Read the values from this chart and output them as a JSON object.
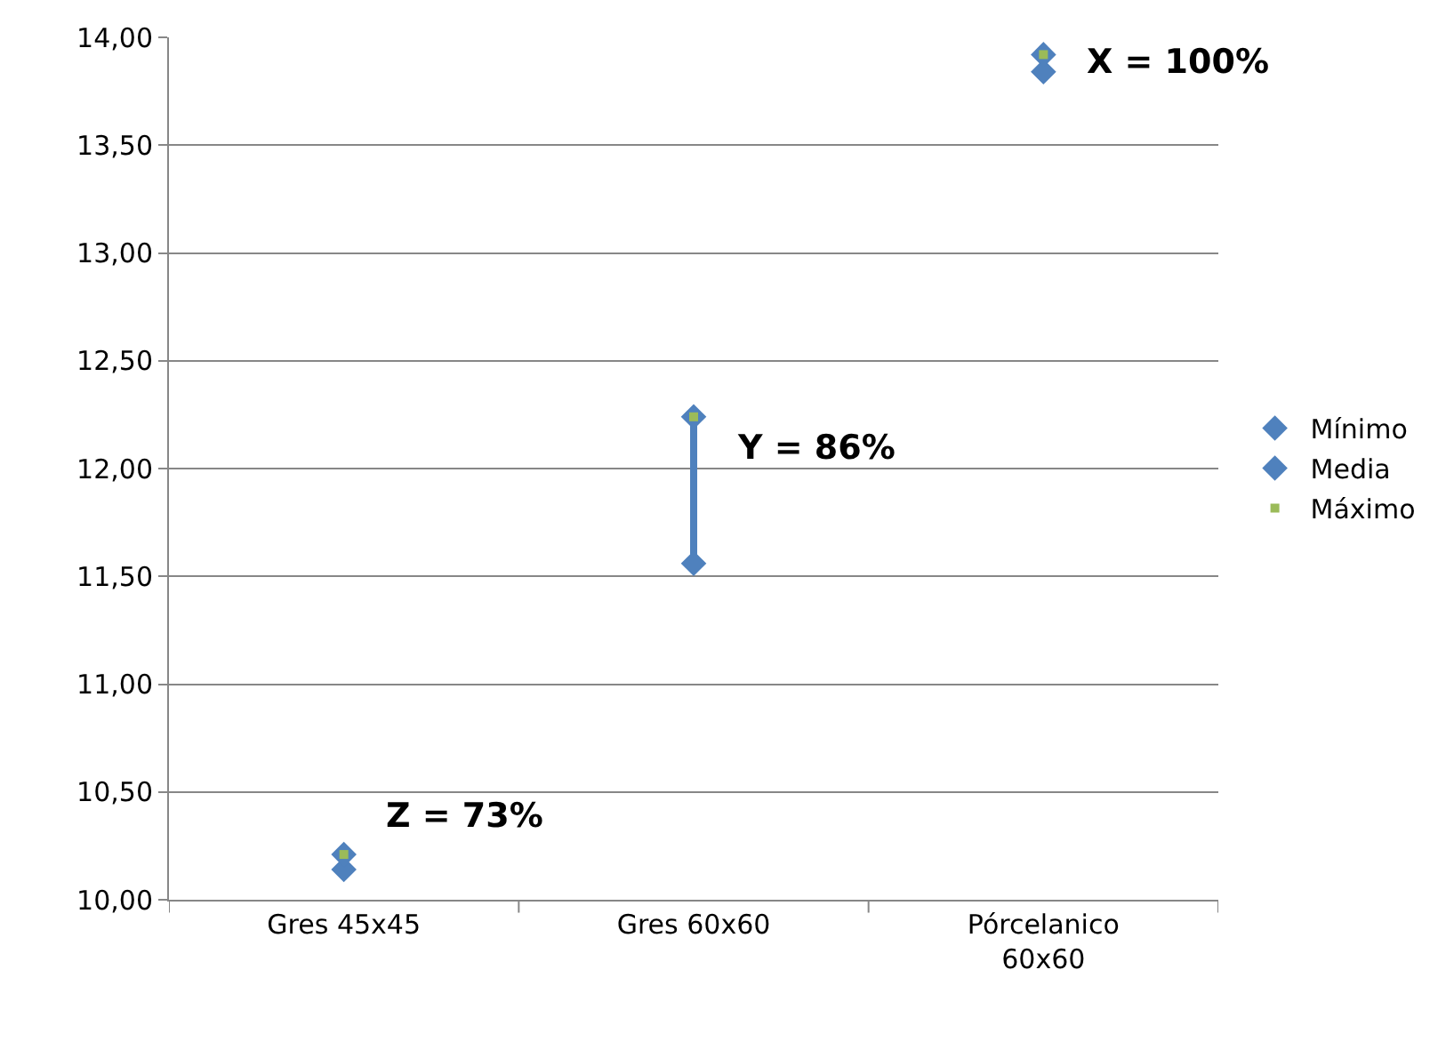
{
  "chart_data": {
    "type": "scatter",
    "categories": [
      "Gres 45x45",
      "Gres 60x60",
      "Pórcelanico 60x60"
    ],
    "series": [
      {
        "name": "Mínimo",
        "color": "#4f81bd",
        "marker": "diamond",
        "values": [
          10.14,
          11.56,
          13.84
        ]
      },
      {
        "name": "Media",
        "color": "#4f81bd",
        "marker": "diamond",
        "values": [
          10.21,
          12.24,
          13.92
        ]
      },
      {
        "name": "Máximo",
        "color": "#9bbb59",
        "marker": "square",
        "values": [
          10.21,
          12.24,
          13.92
        ]
      }
    ],
    "ylim": [
      10,
      14
    ],
    "yticks": [
      {
        "value": 10,
        "label": "10,00"
      },
      {
        "value": 10.5,
        "label": "10,50"
      },
      {
        "value": 11,
        "label": "11,00"
      },
      {
        "value": 11.5,
        "label": "11,50"
      },
      {
        "value": 12,
        "label": "12,00"
      },
      {
        "value": 12.5,
        "label": "12,50"
      },
      {
        "value": 13,
        "label": "13,00"
      },
      {
        "value": 13.5,
        "label": "13,50"
      },
      {
        "value": 14,
        "label": "14,00"
      }
    ],
    "grid": "y",
    "legend": "right",
    "annotations": [
      "Z = 73%",
      "Y = 86%",
      "X = 100%"
    ]
  }
}
